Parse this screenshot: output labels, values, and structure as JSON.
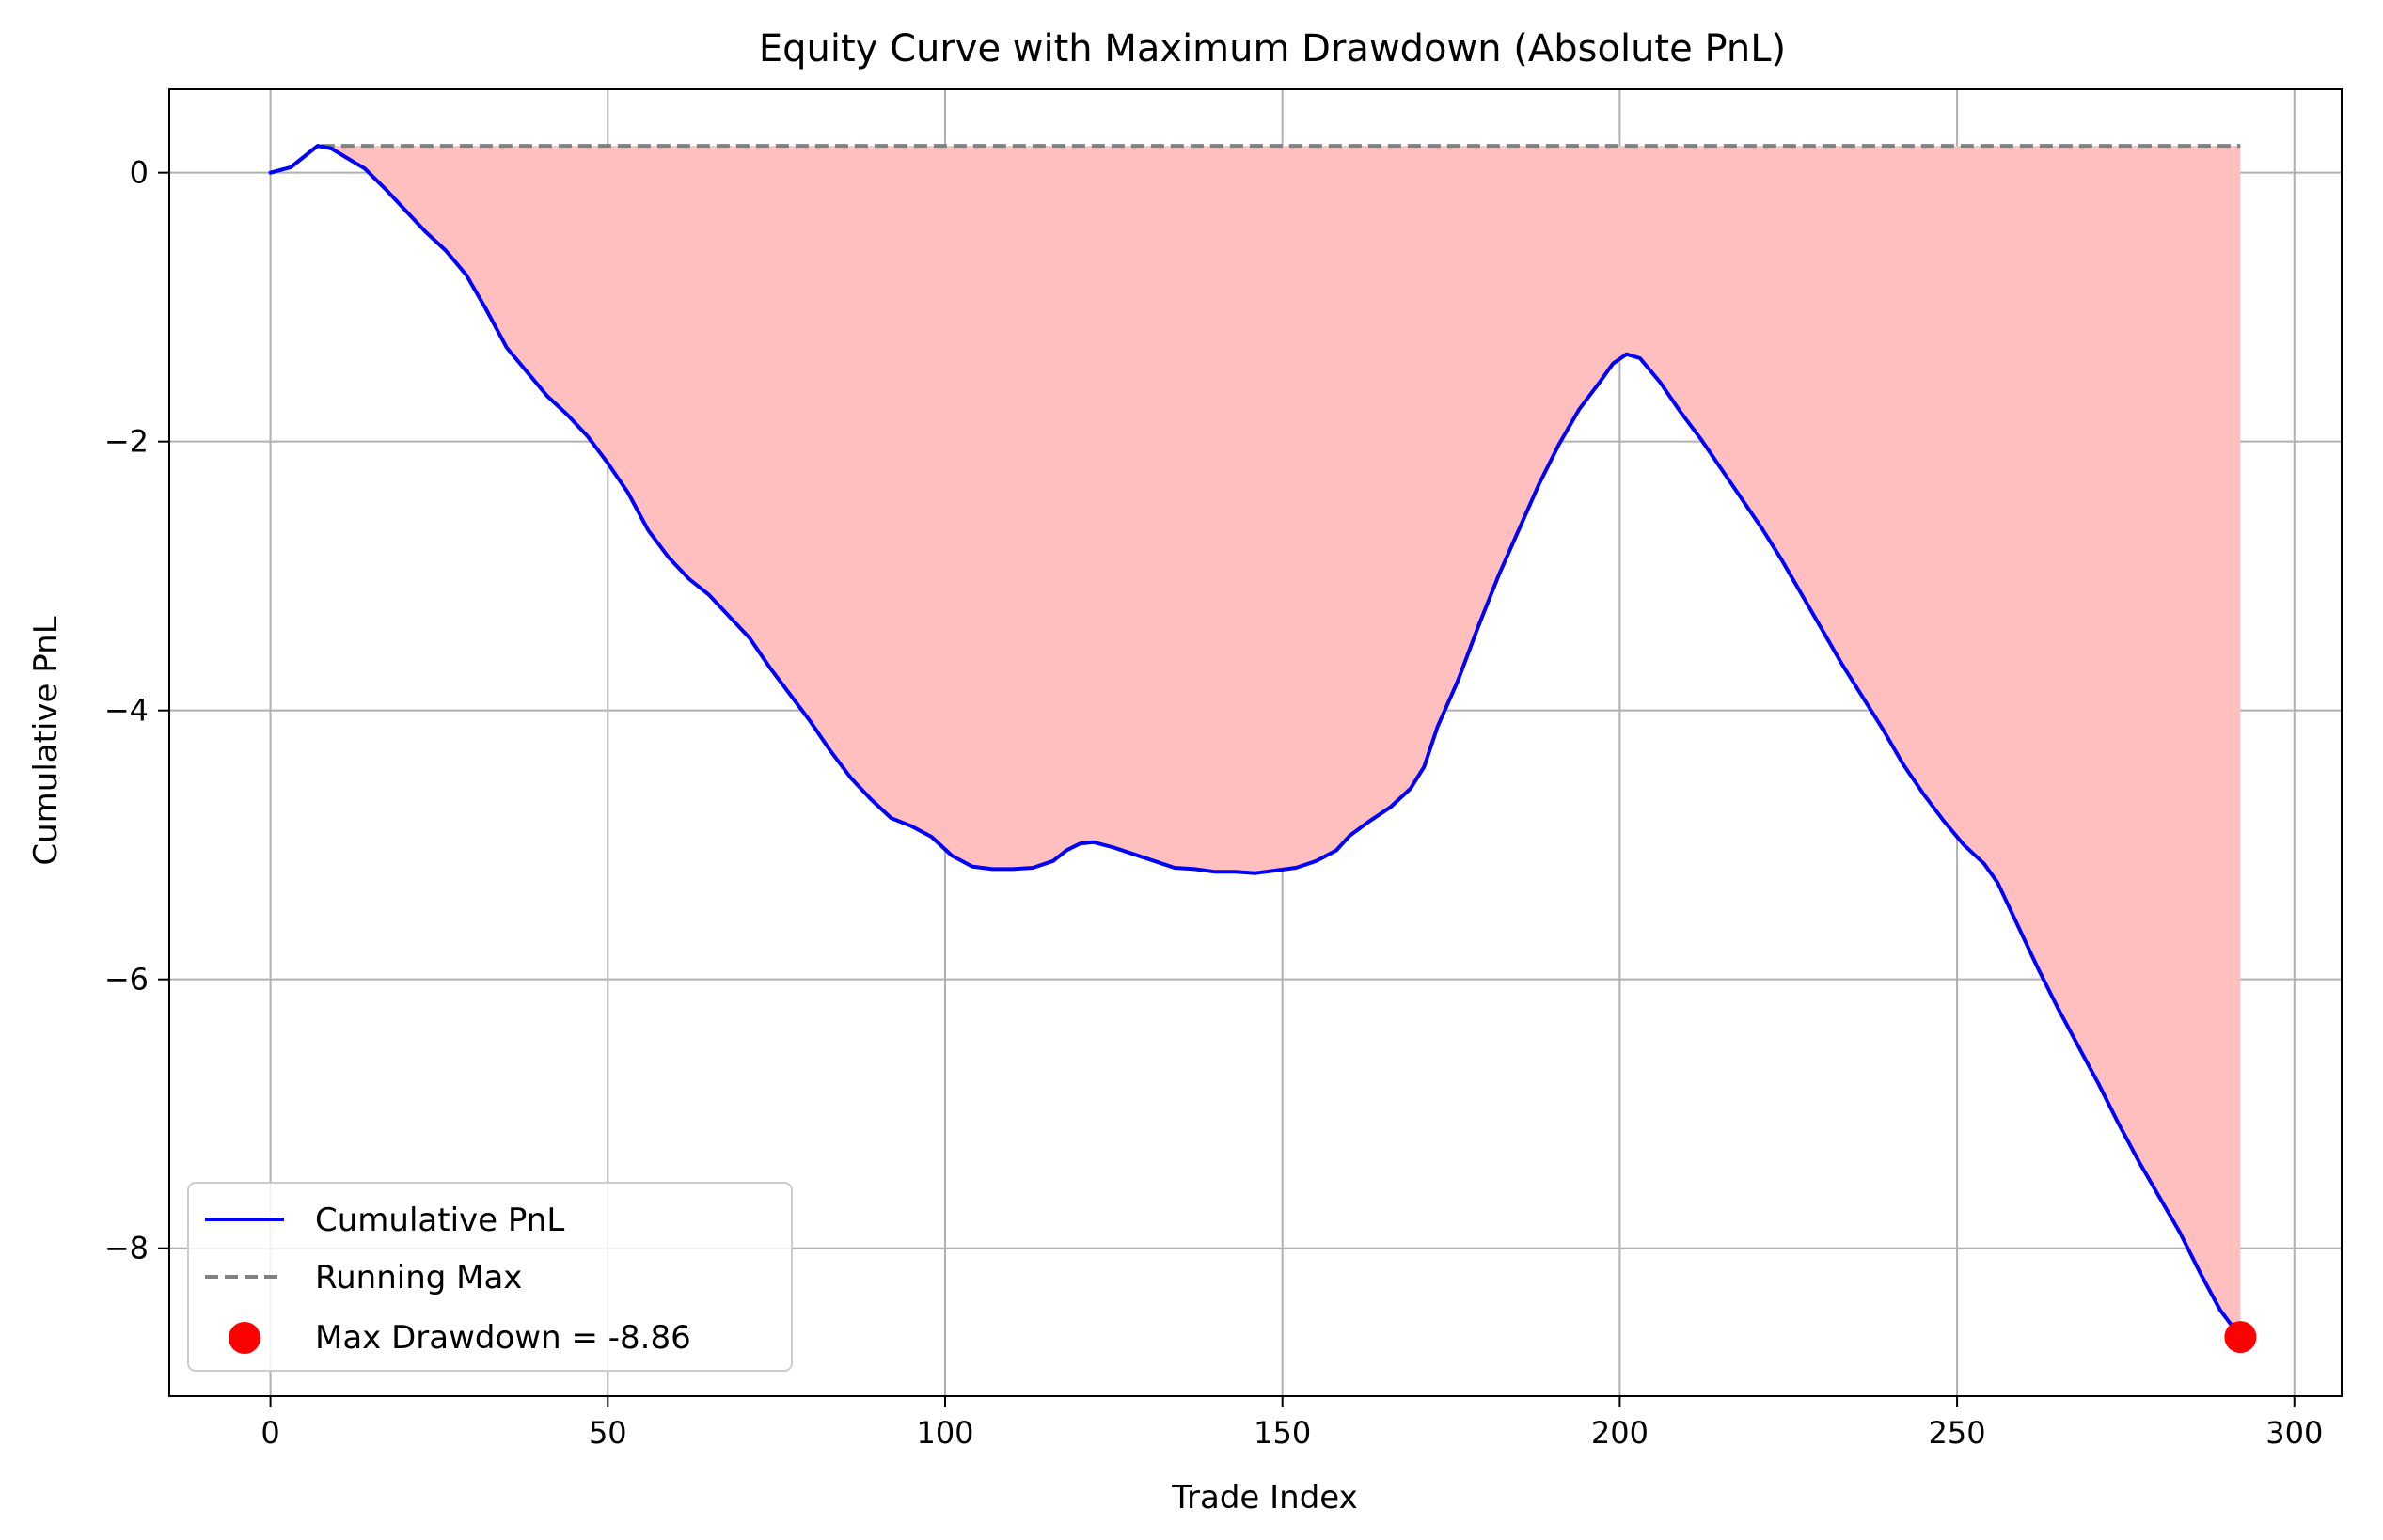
{
  "chart_data": {
    "type": "line",
    "title": "Equity Curve with Maximum Drawdown (Absolute PnL)",
    "xlabel": "Trade Index",
    "ylabel": "Cumulative PnL",
    "xlim": [
      -15,
      307
    ],
    "ylim": [
      -9.1,
      0.62
    ],
    "x_ticks": [
      0,
      50,
      100,
      150,
      200,
      250,
      300
    ],
    "x_tick_labels": [
      "0",
      "50",
      "100",
      "150",
      "200",
      "250",
      "300"
    ],
    "y_ticks": [
      0,
      -2,
      -4,
      -6,
      -8
    ],
    "y_tick_labels": [
      "0",
      "−2",
      "−4",
      "−6",
      "−8"
    ],
    "grid": true,
    "legend_position": "lower-left",
    "series": [
      {
        "name": "Cumulative PnL",
        "color": "#0000ff",
        "style": "solid",
        "points": [
          [
            0,
            0
          ],
          [
            3,
            0.04
          ],
          [
            5,
            0.12
          ],
          [
            7,
            0.2
          ],
          [
            9,
            0.18
          ],
          [
            11,
            0.12
          ],
          [
            14,
            0.03
          ],
          [
            17,
            -0.12
          ],
          [
            20,
            -0.28
          ],
          [
            23,
            -0.44
          ],
          [
            26,
            -0.58
          ],
          [
            29,
            -0.76
          ],
          [
            32,
            -1.02
          ],
          [
            35,
            -1.3
          ],
          [
            38,
            -1.48
          ],
          [
            41,
            -1.66
          ],
          [
            44,
            -1.8
          ],
          [
            47,
            -1.96
          ],
          [
            50,
            -2.16
          ],
          [
            53,
            -2.38
          ],
          [
            56,
            -2.66
          ],
          [
            59,
            -2.86
          ],
          [
            62,
            -3.02
          ],
          [
            65,
            -3.14
          ],
          [
            68,
            -3.3
          ],
          [
            71,
            -3.46
          ],
          [
            74,
            -3.68
          ],
          [
            77,
            -3.88
          ],
          [
            80,
            -4.08
          ],
          [
            83,
            -4.3
          ],
          [
            86,
            -4.5
          ],
          [
            89,
            -4.66
          ],
          [
            92,
            -4.8
          ],
          [
            95,
            -4.86
          ],
          [
            98,
            -4.94
          ],
          [
            101,
            -5.08
          ],
          [
            104,
            -5.16
          ],
          [
            107,
            -5.18
          ],
          [
            110,
            -5.18
          ],
          [
            113,
            -5.17
          ],
          [
            116,
            -5.12
          ],
          [
            118,
            -5.04
          ],
          [
            120,
            -4.99
          ],
          [
            122,
            -4.98
          ],
          [
            125,
            -5.02
          ],
          [
            128,
            -5.07
          ],
          [
            131,
            -5.12
          ],
          [
            134,
            -5.17
          ],
          [
            137,
            -5.18
          ],
          [
            140,
            -5.2
          ],
          [
            143,
            -5.2
          ],
          [
            146,
            -5.21
          ],
          [
            149,
            -5.19
          ],
          [
            152,
            -5.17
          ],
          [
            155,
            -5.12
          ],
          [
            158,
            -5.04
          ],
          [
            160,
            -4.93
          ],
          [
            163,
            -4.82
          ],
          [
            166,
            -4.72
          ],
          [
            169,
            -4.58
          ],
          [
            171,
            -4.42
          ],
          [
            173,
            -4.12
          ],
          [
            176,
            -3.78
          ],
          [
            179,
            -3.38
          ],
          [
            182,
            -3.0
          ],
          [
            185,
            -2.66
          ],
          [
            188,
            -2.32
          ],
          [
            191,
            -2.02
          ],
          [
            194,
            -1.76
          ],
          [
            197,
            -1.56
          ],
          [
            199,
            -1.42
          ],
          [
            201,
            -1.35
          ],
          [
            203,
            -1.38
          ],
          [
            206,
            -1.56
          ],
          [
            209,
            -1.78
          ],
          [
            212,
            -1.98
          ],
          [
            215,
            -2.2
          ],
          [
            218,
            -2.42
          ],
          [
            221,
            -2.64
          ],
          [
            224,
            -2.88
          ],
          [
            227,
            -3.14
          ],
          [
            230,
            -3.4
          ],
          [
            233,
            -3.66
          ],
          [
            236,
            -3.9
          ],
          [
            239,
            -4.14
          ],
          [
            242,
            -4.4
          ],
          [
            245,
            -4.62
          ],
          [
            248,
            -4.82
          ],
          [
            251,
            -5.0
          ],
          [
            254,
            -5.14
          ],
          [
            256,
            -5.28
          ],
          [
            259,
            -5.6
          ],
          [
            262,
            -5.92
          ],
          [
            265,
            -6.22
          ],
          [
            268,
            -6.5
          ],
          [
            271,
            -6.78
          ],
          [
            274,
            -7.08
          ],
          [
            277,
            -7.36
          ],
          [
            280,
            -7.62
          ],
          [
            283,
            -7.88
          ],
          [
            286,
            -8.18
          ],
          [
            289,
            -8.46
          ],
          [
            292,
            -8.66
          ]
        ]
      },
      {
        "name": "Running Max",
        "color": "#808080",
        "style": "dashed",
        "points": [
          [
            0,
            0
          ],
          [
            3,
            0.04
          ],
          [
            5,
            0.12
          ],
          [
            7,
            0.2
          ],
          [
            292,
            0.2
          ]
        ]
      }
    ],
    "fill_between": {
      "series": [
        "Cumulative PnL",
        "Running Max"
      ],
      "color": "#ffbfbf"
    },
    "markers": [
      {
        "name": "Max Drawdown = -8.86",
        "x": 292,
        "y": -8.66,
        "color": "#ff0000"
      }
    ]
  }
}
